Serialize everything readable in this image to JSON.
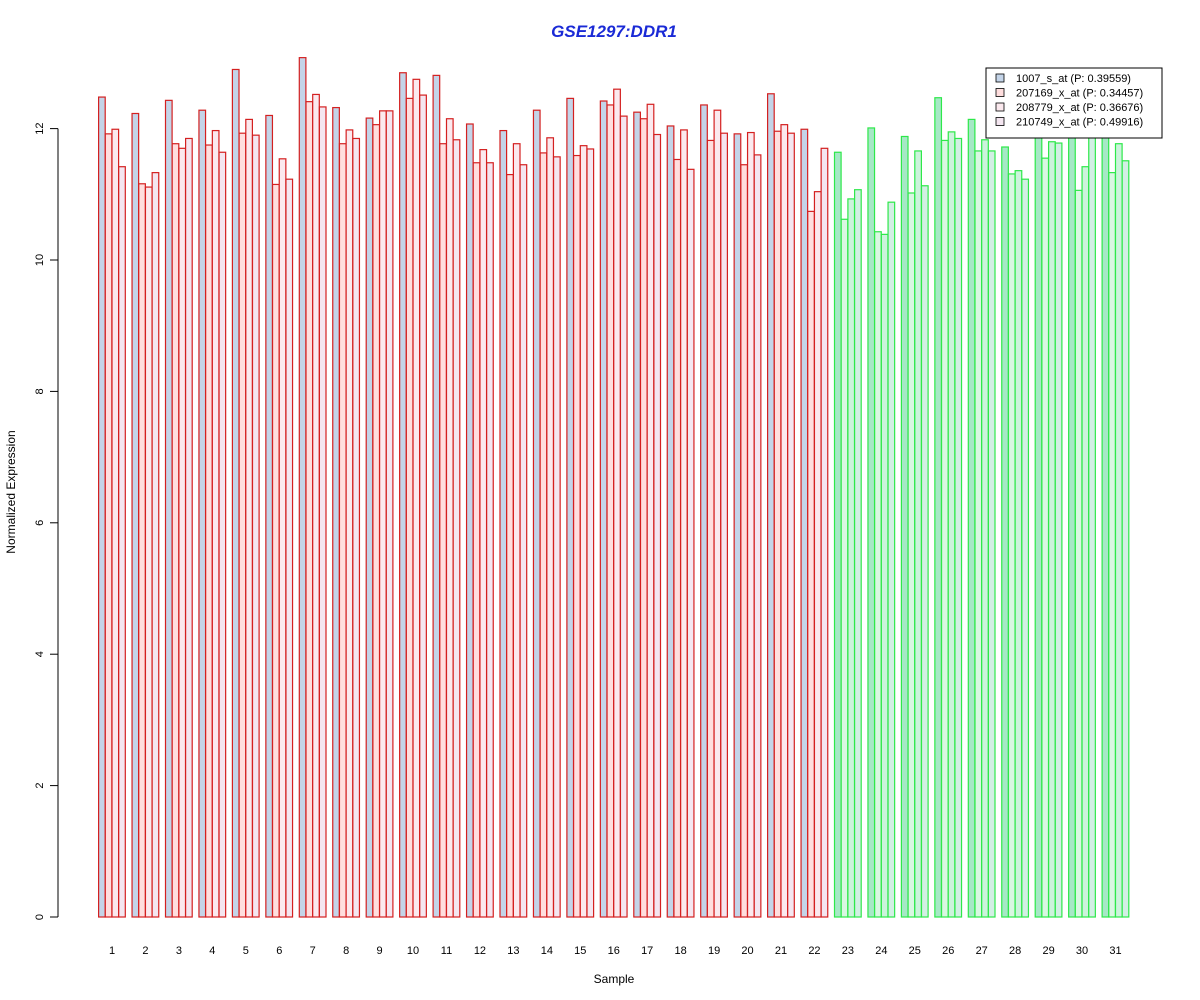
{
  "chart_data": {
    "type": "bar",
    "title": "GSE1297:DDR1",
    "xlabel": "Sample",
    "ylabel": "Normalized Expression",
    "ylim": [
      0,
      13.2
    ],
    "y_ticks": [
      "0",
      "2",
      "4",
      "6",
      "8",
      "10",
      "12"
    ],
    "categories": [
      "1",
      "2",
      "3",
      "4",
      "5",
      "6",
      "7",
      "8",
      "9",
      "10",
      "11",
      "12",
      "13",
      "14",
      "15",
      "16",
      "17",
      "18",
      "19",
      "20",
      "21",
      "22",
      "23",
      "24",
      "25",
      "26",
      "27",
      "28",
      "29",
      "30",
      "31"
    ],
    "series": [
      {
        "name": "1007_s_at (P: 0.39559)",
        "values": [
          12.48,
          12.23,
          12.43,
          12.28,
          12.9,
          12.2,
          13.08,
          12.32,
          12.16,
          12.85,
          12.81,
          12.07,
          11.97,
          12.28,
          12.46,
          12.42,
          12.25,
          12.04,
          12.36,
          11.92,
          12.53,
          11.99,
          11.64,
          12.01,
          11.88,
          12.47,
          12.14,
          11.72,
          12.2,
          12.2,
          12.2
        ]
      },
      {
        "name": "207169_x_at (P: 0.34457)",
        "values": [
          11.92,
          11.16,
          11.77,
          11.75,
          11.93,
          11.15,
          12.41,
          11.77,
          12.06,
          12.46,
          11.77,
          11.48,
          11.3,
          11.63,
          11.59,
          12.36,
          12.15,
          11.53,
          11.82,
          11.45,
          11.96,
          10.74,
          10.62,
          10.43,
          11.02,
          11.82,
          11.66,
          11.31,
          11.55,
          11.06,
          11.33
        ]
      },
      {
        "name": "208779_x_at (P: 0.36676)",
        "values": [
          11.99,
          11.11,
          11.7,
          11.97,
          12.14,
          11.54,
          12.52,
          11.98,
          12.27,
          12.75,
          12.15,
          11.68,
          11.77,
          11.86,
          11.74,
          12.6,
          12.37,
          11.98,
          12.28,
          11.94,
          12.06,
          11.04,
          10.93,
          10.39,
          11.66,
          11.95,
          11.83,
          11.36,
          11.8,
          11.42,
          11.77
        ]
      },
      {
        "name": "210749_x_at (P: 0.49916)",
        "values": [
          11.42,
          11.33,
          11.85,
          11.64,
          11.9,
          11.23,
          12.33,
          11.85,
          12.27,
          12.51,
          11.83,
          11.48,
          11.45,
          11.57,
          11.69,
          12.19,
          11.91,
          11.38,
          11.93,
          11.6,
          11.93,
          11.7,
          11.07,
          10.88,
          11.13,
          11.85,
          11.66,
          11.23,
          11.78,
          11.93,
          11.51
        ]
      }
    ],
    "group_colors": {
      "group1": {
        "samples": "1-22",
        "border": "#d42020"
      },
      "group2": {
        "samples": "23-31",
        "border": "#2ee84a"
      }
    },
    "series_fill_colors": {
      "group1": [
        "#c4d4e8",
        "#ffdede",
        "#fbe9ee",
        "#f4e6f0"
      ],
      "group2": [
        "#a6e8c6",
        "#d9f7e2",
        "#ccf3dc",
        "#d2efe4"
      ]
    },
    "legend_position": "top-right",
    "grid": false
  }
}
